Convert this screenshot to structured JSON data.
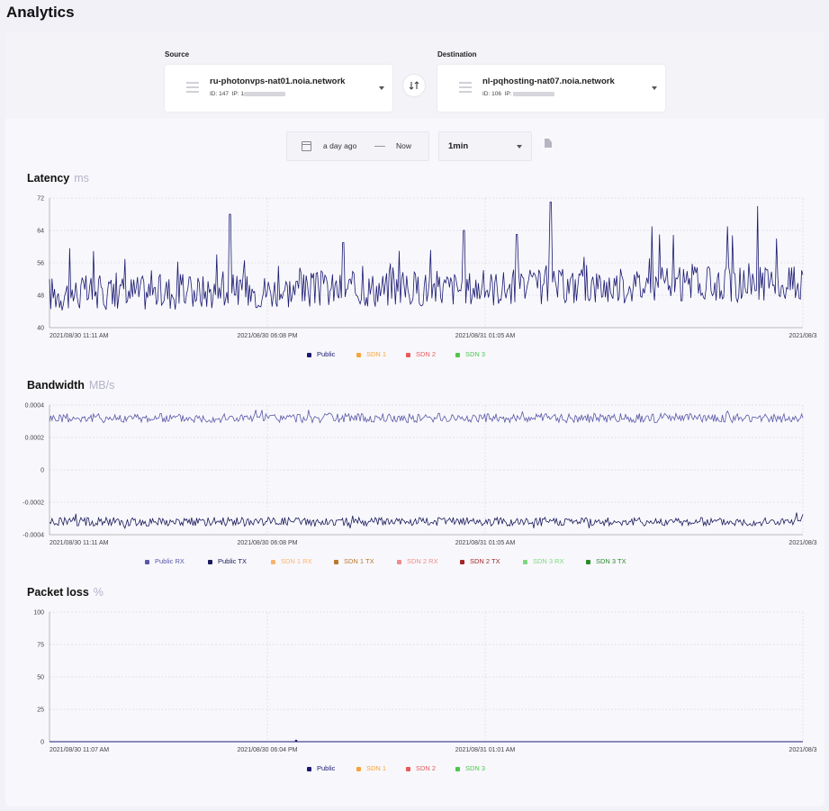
{
  "page": {
    "title": "Analytics"
  },
  "source": {
    "label": "Source",
    "name": "ru-photonvps-nat01.noia.network",
    "id_text": "ID: 147",
    "ip_label": "IP:",
    "ip_prefix": "1"
  },
  "destination": {
    "label": "Destination",
    "name": "nl-pqhosting-nat07.noia.network",
    "id_text": "ID: 106",
    "ip_label": "IP:"
  },
  "swap_icon": "swap-arrows-icon",
  "time_range": {
    "from": "a day ago",
    "to": "Now"
  },
  "interval": {
    "selected": "1min"
  },
  "charts": {
    "latency": {
      "title": "Latency",
      "unit": "ms"
    },
    "bandwidth": {
      "title": "Bandwidth",
      "unit": "MB/s"
    },
    "packet_loss": {
      "title": "Packet loss",
      "unit": "%"
    }
  },
  "chart_data": [
    {
      "type": "line",
      "title": "Latency",
      "ylabel": "ms",
      "ylim": [
        40,
        72
      ],
      "y_ticks": [
        "72",
        "64",
        "56",
        "48",
        "40"
      ],
      "x_ticks": [
        "2021/08/30 11:11 AM",
        "2021/08/30 06:08 PM",
        "2021/08/31 01:05 AM",
        "2021/08/3"
      ],
      "grid": true,
      "series": [
        {
          "name": "Public",
          "color": "#1b1a72",
          "summary": {
            "baseline": 48,
            "min": 41,
            "max": 71
          },
          "spikes": [
            [
              0.24,
              68
            ],
            [
              0.39,
              61
            ],
            [
              0.55,
              64
            ],
            [
              0.62,
              63
            ],
            [
              0.665,
              71
            ],
            [
              0.8,
              65
            ],
            [
              0.81,
              63
            ],
            [
              0.9,
              65
            ],
            [
              0.94,
              70
            ],
            [
              0.965,
              62
            ]
          ]
        },
        {
          "name": "SDN 1",
          "color": "#f7a33c"
        },
        {
          "name": "SDN 2",
          "color": "#e85a5a"
        },
        {
          "name": "SDN 3",
          "color": "#4ec64e"
        }
      ]
    },
    {
      "type": "line",
      "title": "Bandwidth",
      "ylabel": "MB/s",
      "ylim": [
        -0.0004,
        0.0004
      ],
      "y_ticks": [
        "0.0004",
        "0.0002",
        "0",
        "-0.0002",
        "-0.0004"
      ],
      "x_ticks": [
        "2021/08/30 11:11 AM",
        "2021/08/30 06:08 PM",
        "2021/08/31 01:05 AM",
        "2021/08/3"
      ],
      "grid": true,
      "series": [
        {
          "name": "Public RX",
          "color": "#5a58a8",
          "summary": {
            "baseline": 0.00032,
            "min": 0.00024,
            "max": 0.00037
          }
        },
        {
          "name": "Public TX",
          "color": "#1b1a5c",
          "summary": {
            "baseline": -0.00032,
            "min": -0.00036,
            "max": -0.00024
          }
        },
        {
          "name": "SDN 1 RX",
          "color": "#f9b36b"
        },
        {
          "name": "SDN 1 TX",
          "color": "#b9782d"
        },
        {
          "name": "SDN 2 RX",
          "color": "#ec8c8c"
        },
        {
          "name": "SDN 2 TX",
          "color": "#a32828"
        },
        {
          "name": "SDN 3 RX",
          "color": "#7fd67f"
        },
        {
          "name": "SDN 3 TX",
          "color": "#2c8a2c"
        }
      ]
    },
    {
      "type": "line",
      "title": "Packet loss",
      "ylabel": "%",
      "ylim": [
        0,
        100
      ],
      "y_ticks": [
        "100",
        "75",
        "50",
        "25",
        "0"
      ],
      "x_ticks": [
        "2021/08/30 11:07 AM",
        "2021/08/30 06:04 PM",
        "2021/08/31 01:01 AM",
        "2021/08/3"
      ],
      "grid": true,
      "series": [
        {
          "name": "Public",
          "color": "#1b1a72",
          "summary": {
            "baseline": 0
          }
        },
        {
          "name": "SDN 1",
          "color": "#f7a33c"
        },
        {
          "name": "SDN 2",
          "color": "#e85a5a"
        },
        {
          "name": "SDN 3",
          "color": "#4ec64e"
        }
      ]
    }
  ]
}
